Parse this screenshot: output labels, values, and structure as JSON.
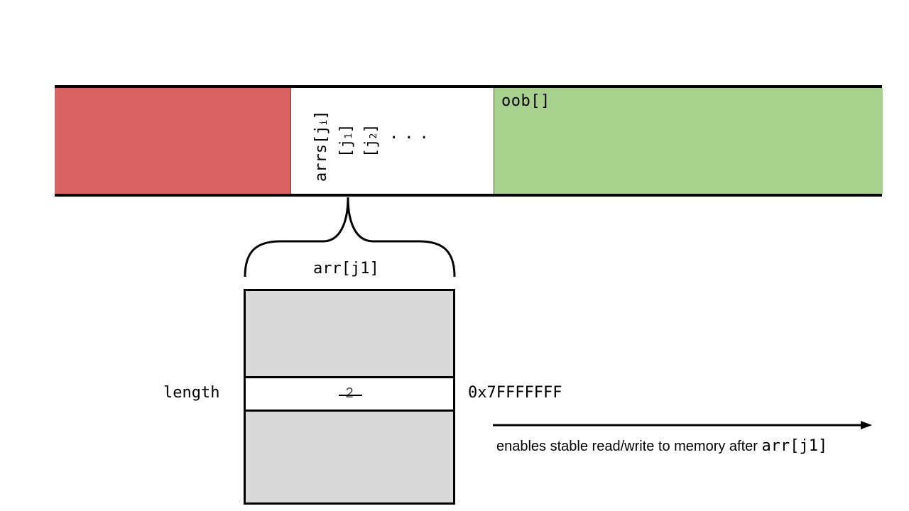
{
  "strip": {
    "oob_label": "oob[]",
    "arrs_label": "arrs[j",
    "arrs_sub": "i",
    "j1_label": "[j",
    "j1_sub": "1",
    "j2_label": "[j",
    "j2_sub": "2",
    "close_bracket": "]",
    "ellipsis": "...",
    "colors": {
      "left_segment": "#d96262",
      "right_segment": "#a8d18d"
    }
  },
  "array": {
    "label": "arr[j1]",
    "length_label": "length",
    "old_length": "2",
    "new_length": "0x7FFFFFFF"
  },
  "note": {
    "text": "enables stable read/write to memory after ",
    "code": "arr[j1]"
  }
}
